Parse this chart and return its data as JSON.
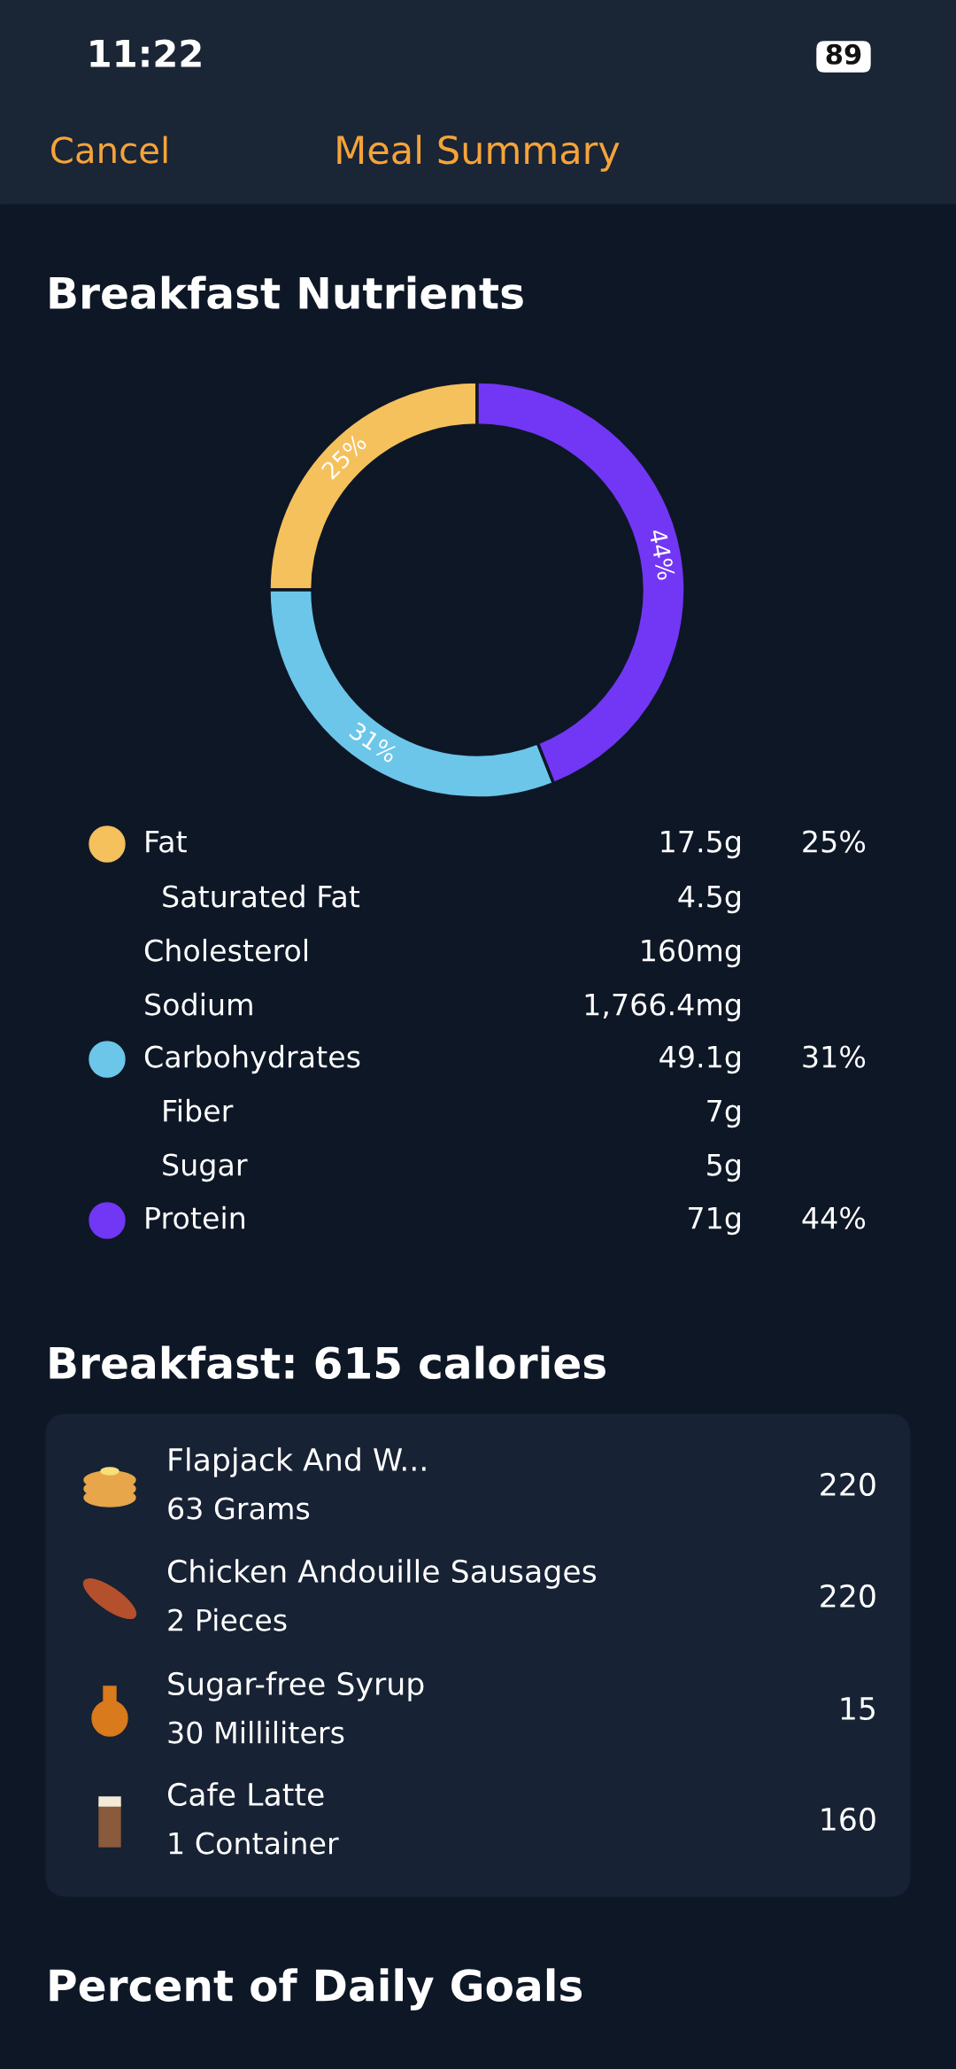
{
  "chart_data": [
    {
      "type": "donut",
      "title": "Breakfast Nutrients",
      "categories": [
        "Fat",
        "Carbohydrates",
        "Protein"
      ],
      "values": [
        25,
        31,
        44
      ],
      "colors": [
        "#f5c15c",
        "#6cc6ea",
        "#7237f5"
      ],
      "value_labels": [
        "25%",
        "31%",
        "44%"
      ],
      "legend": "bottom",
      "annotations": [
        "11:22",
        "89",
        "Cancel",
        "Meal Summary",
        "17.5g",
        "Saturated Fat",
        "4.5g",
        "Cholesterol",
        "160mg",
        "Sodium",
        "1,766.4mg",
        "49.1g",
        "Fiber",
        "7g",
        "Sugar",
        "5g",
        "71g"
      ]
    },
    {
      "type": "other",
      "title": "Breakfast: 615 calories",
      "annotations": [
        "Flapjack And W...",
        "63 Grams",
        "220",
        "Chicken Andouille Sausages",
        "2 Pieces",
        "220",
        "Sugar-free Syrup",
        "30 Milliliters",
        "15",
        "Cafe Latte",
        "1 Container",
        "160"
      ]
    },
    {
      "type": "other",
      "title": "Percent of Daily Goals"
    }
  ]
}
